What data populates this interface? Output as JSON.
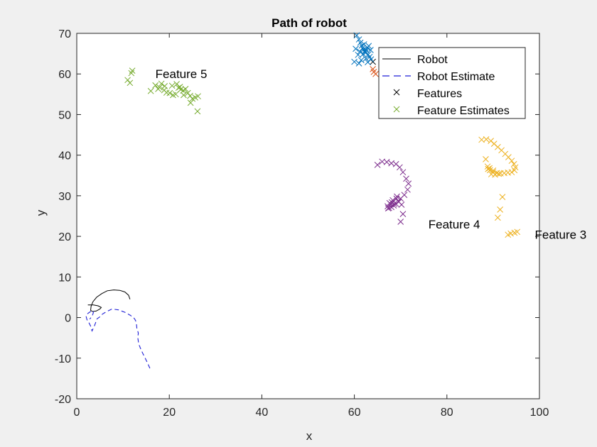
{
  "chart_data": {
    "type": "scatter",
    "title": "Path of robot",
    "xlabel": "x",
    "ylabel": "y",
    "xlim": [
      0,
      100
    ],
    "ylim": [
      -20,
      70
    ],
    "xticks": [
      "0",
      "20",
      "40",
      "60",
      "80",
      "100"
    ],
    "yticks": [
      "-20",
      "-10",
      "0",
      "10",
      "20",
      "30",
      "40",
      "50",
      "60",
      "70"
    ],
    "grid": false,
    "legend_position": "top-right",
    "legend": [
      {
        "label": "Robot",
        "style": "solid-line",
        "color": "#000000"
      },
      {
        "label": "Robot Estimate",
        "style": "dashed-line",
        "color": "#1f1fd6"
      },
      {
        "label": "Features",
        "style": "x-marker",
        "color": "#000000"
      },
      {
        "label": "Feature Estimates",
        "style": "x-marker",
        "color": "#77ac30"
      }
    ],
    "annotations": [
      {
        "text": "Feature 5",
        "x": 17,
        "y": 60
      },
      {
        "text": "Feature 4",
        "x": 76,
        "y": 23
      },
      {
        "text": "Feature 3",
        "x": 99,
        "y": 20.5
      }
    ],
    "series": [
      {
        "name": "Robot",
        "kind": "line",
        "color": "#000000",
        "x": [
          11.5,
          11.2,
          10.4,
          9.3,
          8.0,
          6.6,
          5.4,
          4.3,
          3.5,
          3.1,
          3.0,
          3.4,
          4.2,
          5.0,
          5.3,
          4.6,
          3.6,
          2.9,
          2.4
        ],
        "y": [
          4.5,
          5.5,
          6.3,
          6.7,
          6.8,
          6.6,
          5.9,
          5.0,
          3.9,
          2.8,
          1.8,
          1.5,
          1.6,
          2.1,
          2.5,
          2.9,
          3.1,
          3.1,
          3.1
        ]
      },
      {
        "name": "Robot Estimate",
        "kind": "dashed-line",
        "color": "#1f1fd6",
        "x": [
          15.8,
          15.3,
          14.7,
          14.0,
          13.4,
          13.2,
          13.3,
          13.0,
          12.9,
          12.7,
          12.3,
          11.5,
          10.4,
          9.0,
          7.6,
          6.5,
          5.6,
          5.0,
          4.4,
          4.2,
          3.9,
          3.6,
          3.3,
          3.0,
          2.6,
          2.2,
          2.0,
          2.4,
          3.0,
          3.5,
          3.6,
          3.3,
          2.8
        ],
        "y": [
          -12.5,
          -11.2,
          -9.8,
          -8.2,
          -6.5,
          -5.0,
          -3.8,
          -2.7,
          -1.6,
          -0.7,
          0.0,
          0.6,
          1.3,
          1.9,
          2.1,
          1.5,
          0.9,
          0.2,
          -0.3,
          -0.9,
          -1.8,
          -2.6,
          -3.3,
          -2.1,
          -1.2,
          -0.5,
          0.4,
          1.0,
          1.5,
          1.7,
          1.2,
          0.3,
          -0.4
        ]
      },
      {
        "name": "Features",
        "kind": "x-marker",
        "color": "#000000",
        "x": [
          64.0
        ],
        "y": [
          63.0
        ]
      },
      {
        "name": "Feature 1 estimates",
        "kind": "x-marker",
        "color": "#0072bd",
        "x": [
          60.5,
          61.0,
          61.3,
          61.6,
          61.8,
          62.0,
          62.2,
          62.4,
          62.6,
          62.8,
          63.0,
          63.3,
          63.6,
          61.2,
          61.9,
          62.5,
          63.1,
          60.3,
          60.8,
          63.5,
          62.1,
          61.5,
          62.9,
          60.0,
          61.0
        ],
        "y": [
          69.5,
          68.5,
          67.7,
          67.0,
          66.4,
          66.0,
          65.6,
          65.2,
          65.8,
          66.5,
          64.8,
          64.2,
          63.6,
          65.5,
          64.9,
          63.8,
          66.9,
          66.2,
          64.7,
          65.9,
          67.3,
          63.4,
          62.9,
          63.0,
          62.6
        ]
      },
      {
        "name": "Feature 2 estimates",
        "kind": "x-marker",
        "color": "#d95319",
        "x": [
          64.2,
          64.6,
          64.0
        ],
        "y": [
          60.5,
          60.0,
          61.2
        ]
      },
      {
        "name": "Feature 3 estimates",
        "kind": "x-marker",
        "color": "#edb120",
        "x": [
          87.5,
          88.5,
          89.5,
          90.2,
          91.0,
          91.8,
          92.6,
          93.3,
          94.0,
          94.5,
          94.8,
          94.6,
          94.0,
          93.2,
          92.4,
          91.6,
          90.8,
          90.0,
          89.3,
          88.8,
          88.4,
          88.9,
          89.6,
          90.4,
          91.2,
          92.0,
          91.5,
          91.0,
          93.2,
          93.8,
          94.6,
          95.2,
          89.2,
          90.0
        ],
        "y": [
          43.8,
          43.9,
          43.5,
          42.8,
          42.0,
          41.2,
          40.3,
          39.5,
          38.6,
          37.8,
          37.0,
          36.3,
          35.8,
          35.7,
          35.6,
          35.5,
          35.6,
          35.8,
          36.3,
          37.2,
          39.0,
          36.6,
          35.3,
          35.2,
          35.4,
          29.7,
          26.6,
          24.6,
          20.4,
          20.7,
          20.9,
          21.1,
          36.8,
          36.2
        ]
      },
      {
        "name": "Feature 4 estimates",
        "kind": "x-marker",
        "color": "#7e2f8e",
        "x": [
          65.0,
          66.0,
          67.0,
          68.0,
          69.0,
          69.8,
          70.5,
          71.2,
          71.7,
          71.5,
          70.8,
          70.0,
          69.5,
          69.0,
          68.5,
          68.0,
          67.5,
          67.2,
          67.6,
          68.3,
          69.1,
          69.6,
          70.2,
          70.5,
          70.0,
          69.2,
          68.6,
          67.9,
          67.3,
          68.1
        ],
        "y": [
          37.6,
          38.4,
          38.3,
          38.0,
          37.8,
          37.0,
          35.8,
          34.2,
          33.0,
          31.5,
          30.2,
          29.3,
          28.6,
          28.0,
          27.6,
          27.2,
          27.0,
          27.4,
          28.2,
          28.9,
          29.3,
          28.5,
          27.8,
          25.5,
          23.6,
          29.8,
          28.0,
          27.9,
          26.9,
          28.4
        ]
      },
      {
        "name": "Feature 5 estimates",
        "kind": "x-marker",
        "color": "#77ac30",
        "x": [
          11.0,
          11.8,
          12.0,
          11.5,
          16.0,
          17.0,
          17.6,
          18.3,
          18.9,
          19.4,
          20.1,
          20.8,
          21.4,
          22.0,
          22.5,
          23.0,
          23.5,
          24.0,
          24.5,
          25.0,
          25.6,
          26.2,
          26.1,
          20.6,
          21.6,
          22.3,
          23.1,
          17.9,
          19.0,
          24.6
        ],
        "y": [
          58.5,
          60.2,
          60.8,
          57.8,
          55.8,
          57.2,
          56.3,
          57.6,
          56.0,
          55.4,
          55.3,
          54.8,
          55.0,
          56.6,
          56.2,
          55.9,
          56.3,
          55.3,
          54.6,
          53.9,
          54.2,
          54.5,
          50.8,
          57.1,
          57.5,
          56.8,
          54.8,
          56.7,
          57.0,
          52.9
        ]
      }
    ]
  }
}
